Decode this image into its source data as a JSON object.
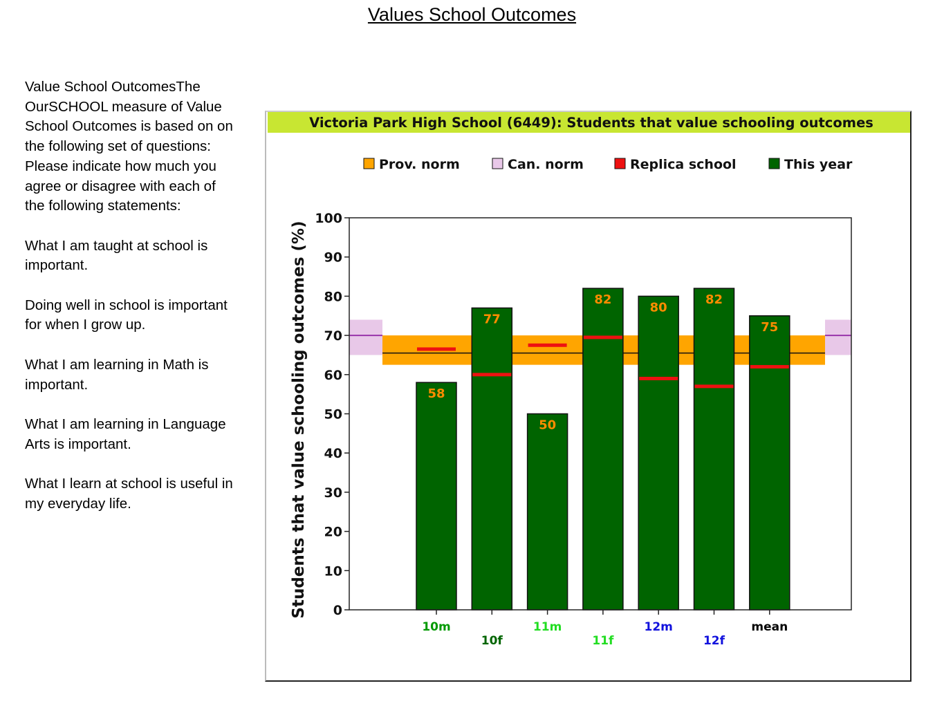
{
  "page": {
    "title": "Values School Outcomes"
  },
  "sidebar": {
    "paragraphs": [
      "Value School OutcomesThe OurSCHOOL measure of Value School Outcomes is based on on the following set of questions: Please indicate how much you agree or disagree with each of the following statements:",
      "What I am taught at school is important.",
      "Doing well in school is important for when I grow up.",
      "What I am learning in Math is important.",
      "What I am learning in Language Arts is important.",
      "What I learn at school is useful in my everyday life."
    ]
  },
  "chart_data": {
    "type": "bar",
    "title": "Victoria Park High School (6449): Students that value schooling outcomes",
    "ylabel": "Students that value schooling outcomes (%)",
    "xlabel": "",
    "ylim": [
      0,
      100
    ],
    "yticks": [
      0,
      10,
      20,
      30,
      40,
      50,
      60,
      70,
      80,
      90,
      100
    ],
    "grid": false,
    "legend_position": "top",
    "legend": [
      {
        "label": "Prov. norm",
        "color": "#ffa500"
      },
      {
        "label": "Can. norm",
        "color": "#e8c8e8"
      },
      {
        "label": "Replica school",
        "color": "#ee1111"
      },
      {
        "label": "This year",
        "color": "#006400"
      }
    ],
    "categories": [
      {
        "label": "10m",
        "color": "#009900"
      },
      {
        "label": "10f",
        "color": "#006400"
      },
      {
        "label": "11m",
        "color": "#22dd22"
      },
      {
        "label": "11f",
        "color": "#22dd22"
      },
      {
        "label": "12m",
        "color": "#1111dd"
      },
      {
        "label": "12f",
        "color": "#1111dd"
      },
      {
        "label": "mean",
        "color": "#000000"
      }
    ],
    "series": [
      {
        "name": "This year",
        "values": [
          58,
          77,
          50,
          82,
          80,
          82,
          75
        ]
      },
      {
        "name": "Replica school",
        "values": [
          66.5,
          60,
          67.5,
          69.5,
          59,
          57,
          62
        ]
      }
    ],
    "prov_norm": {
      "low": 62.5,
      "high": 70,
      "mid": 65.5
    },
    "can_norm": {
      "low": 65,
      "high": 74,
      "mid": 70
    },
    "colors": {
      "title_band": "#c8e632",
      "bar": "#006400",
      "replica": "#ee1111",
      "prov_norm": "#ffa500",
      "can_norm": "#e8c8e8",
      "can_norm_line": "#9933aa",
      "value_label": "#ff8c00"
    }
  }
}
